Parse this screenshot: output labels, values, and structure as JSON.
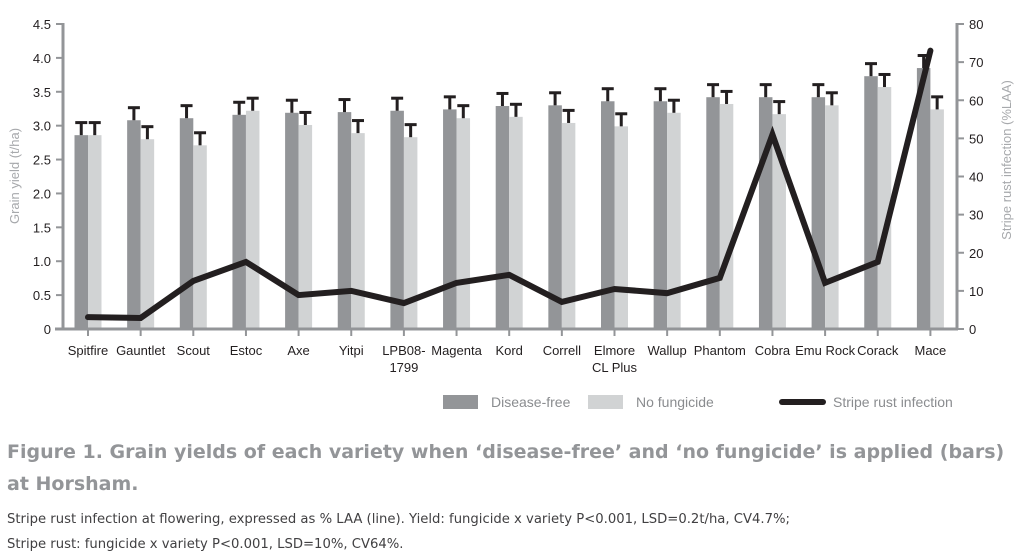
{
  "chart_data": {
    "type": "bar",
    "title": "",
    "xlabel": "",
    "ylabel": "Grain yield (t/ha)",
    "y2label": "Stripe rust infection (%LAA)",
    "ylim": [
      0,
      4.5
    ],
    "y2lim": [
      0,
      80
    ],
    "yticks": [
      "0",
      "0.5",
      "1.0",
      "1.5",
      "2.0",
      "2.5",
      "3.0",
      "3.5",
      "4.0",
      "4.5"
    ],
    "y2ticks": [
      "0",
      "10",
      "20",
      "30",
      "40",
      "50",
      "60",
      "70",
      "80"
    ],
    "grid": false,
    "legend_position": "bottom",
    "categories": [
      [
        "Spitfire"
      ],
      [
        "Gauntlet"
      ],
      [
        "Scout"
      ],
      [
        "Estoc"
      ],
      [
        "Axe"
      ],
      [
        "Yitpi"
      ],
      [
        "LPB08-",
        "1799"
      ],
      [
        "Magenta"
      ],
      [
        "Kord"
      ],
      [
        "Correll"
      ],
      [
        "Elmore",
        "CL Plus"
      ],
      [
        "Wallup"
      ],
      [
        "Phantom"
      ],
      [
        "Cobra"
      ],
      [
        "Emu Rock"
      ],
      [
        "Corack"
      ],
      [
        "Mace"
      ]
    ],
    "series": [
      {
        "name": "Disease-free",
        "type": "bar",
        "axis": "left",
        "color": "#939598",
        "values": [
          2.86,
          3.08,
          3.11,
          3.16,
          3.19,
          3.2,
          3.22,
          3.24,
          3.29,
          3.3,
          3.36,
          3.36,
          3.42,
          3.42,
          3.42,
          3.73,
          3.85
        ],
        "error": 0.2
      },
      {
        "name": "No fungicide",
        "type": "bar",
        "axis": "left",
        "color": "#d1d3d4",
        "values": [
          2.86,
          2.8,
          2.71,
          3.22,
          3.01,
          2.89,
          2.83,
          3.11,
          3.13,
          3.04,
          2.99,
          3.19,
          3.32,
          3.17,
          3.3,
          3.57,
          3.24
        ],
        "error": 0.2
      },
      {
        "name": "Stripe rust infection",
        "type": "line",
        "axis": "right",
        "color": "#231f20",
        "values": [
          3.1,
          2.9,
          12.6,
          17.6,
          8.9,
          10.0,
          6.8,
          12.1,
          14.2,
          7.1,
          10.5,
          9.4,
          13.4,
          51,
          12.1,
          17.6,
          73
        ]
      }
    ]
  },
  "caption": {
    "title_line1": "Figure 1. Grain yields of each variety when ‘disease-free’ and ‘no fungicide’ is applied (bars)",
    "title_line2": "at Horsham.",
    "body_line1": "Stripe rust infection at flowering, expressed as % LAA (line). Yield: fungicide x variety P<0.001, LSD=0.2t/ha, CV4.7%;",
    "body_line2": "Stripe rust: fungicide x variety P<0.001, LSD=10%, CV64%."
  }
}
